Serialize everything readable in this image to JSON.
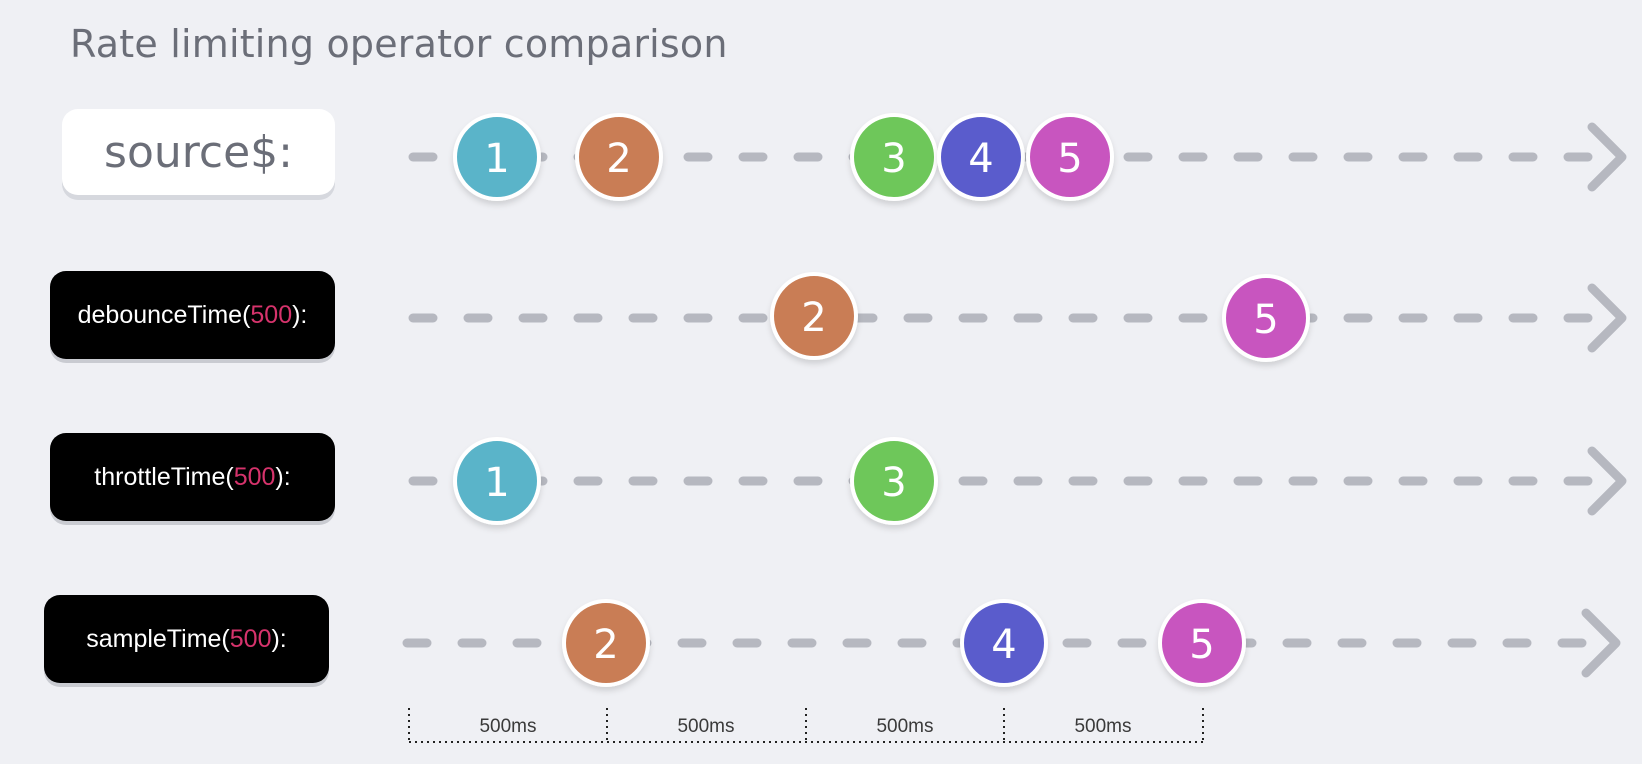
{
  "title": "Rate limiting operator comparison",
  "rows": [
    {
      "id": "source",
      "label_plain": "source$:",
      "marbles": [
        {
          "value": "1",
          "color": "#5ab4c9"
        },
        {
          "value": "2",
          "color": "#c97d55"
        },
        {
          "value": "3",
          "color": "#6ec75a"
        },
        {
          "value": "4",
          "color": "#5a5ccc"
        },
        {
          "value": "5",
          "color": "#c855bf"
        }
      ]
    },
    {
      "id": "debounce",
      "label_prefix": "debounceTime(",
      "label_arg": "500",
      "label_suffix": "):",
      "marbles": [
        {
          "value": "2",
          "color": "#c97d55"
        },
        {
          "value": "5",
          "color": "#c855bf"
        }
      ]
    },
    {
      "id": "throttle",
      "label_prefix": "throttleTime(",
      "label_arg": "500",
      "label_suffix": "):",
      "marbles": [
        {
          "value": "1",
          "color": "#5ab4c9"
        },
        {
          "value": "3",
          "color": "#6ec75a"
        }
      ]
    },
    {
      "id": "sample",
      "label_prefix": "sampleTime(",
      "label_arg": "500",
      "label_suffix": "):",
      "marbles": [
        {
          "value": "2",
          "color": "#c97d55"
        },
        {
          "value": "4",
          "color": "#5a5ccc"
        },
        {
          "value": "5",
          "color": "#c855bf"
        }
      ]
    }
  ],
  "intervals": [
    "500ms",
    "500ms",
    "500ms",
    "500ms"
  ],
  "colors": {
    "timeline": "#b6b8c0",
    "background": "#eff0f4",
    "arg_highlight": "#d6336c"
  }
}
